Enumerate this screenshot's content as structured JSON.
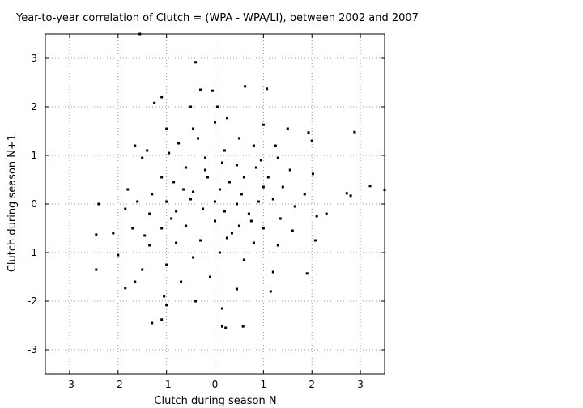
{
  "chart_data": {
    "type": "scatter",
    "title": "Year-to-year correlation of Clutch = (WPA - WPA/LI), between 2002 and 2007",
    "xlabel": "Clutch during season N",
    "ylabel": "Clutch during season N+1",
    "xlim": [
      -3.5,
      3.5
    ],
    "ylim": [
      -3.5,
      3.5
    ],
    "x_ticks": [
      -3,
      -2,
      -1,
      0,
      1,
      2,
      3
    ],
    "y_ticks": [
      -3,
      -2,
      -1,
      0,
      1,
      2,
      3
    ],
    "x_tick_labels": [
      "-3",
      "-2",
      "-1",
      "0",
      "1",
      "2",
      "3"
    ],
    "y_tick_labels": [
      "-3",
      "-2",
      "-1",
      "0",
      "1",
      "2",
      "3"
    ],
    "grid": true,
    "grid_style": "dotted",
    "marker": "small black square",
    "marker_color": "#000000",
    "series": [
      {
        "points": [
          [
            -1.55,
            3.5
          ],
          [
            -0.4,
            2.92
          ],
          [
            0.62,
            2.42
          ],
          [
            1.07,
            2.37
          ],
          [
            -0.3,
            2.35
          ],
          [
            -0.05,
            2.33
          ],
          [
            -1.1,
            2.2
          ],
          [
            -1.25,
            2.08
          ],
          [
            -0.5,
            2.0
          ],
          [
            0.05,
            2.0
          ],
          [
            -0.45,
            1.55
          ],
          [
            0.25,
            1.77
          ],
          [
            -1.0,
            1.55
          ],
          [
            1.0,
            1.63
          ],
          [
            1.5,
            1.55
          ],
          [
            2.88,
            1.48
          ],
          [
            1.93,
            1.47
          ],
          [
            0.0,
            1.68
          ],
          [
            -0.95,
            1.05
          ],
          [
            -1.4,
            1.1
          ],
          [
            -0.75,
            1.25
          ],
          [
            -0.35,
            1.35
          ],
          [
            0.5,
            1.35
          ],
          [
            0.8,
            1.2
          ],
          [
            1.25,
            1.2
          ],
          [
            -1.65,
            1.2
          ],
          [
            2.0,
            1.3
          ],
          [
            0.2,
            1.1
          ],
          [
            -0.2,
            0.95
          ],
          [
            0.45,
            0.8
          ],
          [
            1.3,
            0.95
          ],
          [
            -1.5,
            0.95
          ],
          [
            -0.6,
            0.75
          ],
          [
            0.85,
            0.75
          ],
          [
            1.55,
            0.7
          ],
          [
            2.02,
            0.62
          ],
          [
            -1.1,
            0.55
          ],
          [
            -0.15,
            0.55
          ],
          [
            0.6,
            0.55
          ],
          [
            1.1,
            0.55
          ],
          [
            -1.8,
            0.3
          ],
          [
            -0.85,
            0.45
          ],
          [
            0.3,
            0.45
          ],
          [
            1.0,
            0.35
          ],
          [
            1.4,
            0.35
          ],
          [
            3.2,
            0.37
          ],
          [
            3.5,
            0.29
          ],
          [
            2.72,
            0.22
          ],
          [
            2.8,
            0.17
          ],
          [
            1.85,
            0.2
          ],
          [
            -1.3,
            0.2
          ],
          [
            -0.45,
            0.25
          ],
          [
            0.1,
            0.3
          ],
          [
            0.55,
            0.2
          ],
          [
            1.2,
            0.1
          ],
          [
            -2.4,
            0.0
          ],
          [
            -1.6,
            0.05
          ],
          [
            -1.0,
            0.05
          ],
          [
            -0.5,
            0.1
          ],
          [
            0.0,
            0.05
          ],
          [
            0.45,
            0.0
          ],
          [
            0.9,
            0.05
          ],
          [
            1.65,
            -0.05
          ],
          [
            2.3,
            -0.2
          ],
          [
            2.1,
            -0.25
          ],
          [
            -1.85,
            -0.1
          ],
          [
            -1.35,
            -0.2
          ],
          [
            -0.8,
            -0.15
          ],
          [
            -0.25,
            -0.1
          ],
          [
            0.2,
            -0.15
          ],
          [
            0.7,
            -0.2
          ],
          [
            1.35,
            -0.3
          ],
          [
            -2.1,
            -0.6
          ],
          [
            -2.45,
            -0.63
          ],
          [
            -1.7,
            -0.5
          ],
          [
            -1.1,
            -0.5
          ],
          [
            -0.6,
            -0.45
          ],
          [
            0.0,
            -0.35
          ],
          [
            0.5,
            -0.45
          ],
          [
            1.0,
            -0.5
          ],
          [
            1.6,
            -0.55
          ],
          [
            2.07,
            -0.75
          ],
          [
            -1.35,
            -0.85
          ],
          [
            -0.8,
            -0.8
          ],
          [
            -0.3,
            -0.75
          ],
          [
            0.25,
            -0.7
          ],
          [
            0.8,
            -0.8
          ],
          [
            1.3,
            -0.85
          ],
          [
            -2.0,
            -1.05
          ],
          [
            -2.45,
            -1.35
          ],
          [
            -1.5,
            -1.35
          ],
          [
            -1.0,
            -1.25
          ],
          [
            -0.45,
            -1.1
          ],
          [
            0.1,
            -1.0
          ],
          [
            0.6,
            -1.15
          ],
          [
            1.2,
            -1.4
          ],
          [
            1.9,
            -1.43
          ],
          [
            -1.85,
            -1.73
          ],
          [
            -1.65,
            -1.6
          ],
          [
            -0.7,
            -1.6
          ],
          [
            -0.1,
            -1.5
          ],
          [
            0.45,
            -1.75
          ],
          [
            1.15,
            -1.8
          ],
          [
            -1.05,
            -1.9
          ],
          [
            -1.0,
            -2.08
          ],
          [
            -0.4,
            -2.0
          ],
          [
            0.15,
            -2.15
          ],
          [
            -1.1,
            -2.38
          ],
          [
            -1.3,
            -2.45
          ],
          [
            0.15,
            -2.52
          ],
          [
            0.22,
            -2.55
          ],
          [
            0.58,
            -2.52
          ],
          [
            -0.2,
            0.7
          ],
          [
            0.35,
            -0.6
          ],
          [
            -0.65,
            0.3
          ],
          [
            0.75,
            -0.35
          ],
          [
            -0.9,
            -0.3
          ],
          [
            0.15,
            0.85
          ],
          [
            0.95,
            0.9
          ],
          [
            -1.45,
            -0.65
          ]
        ]
      }
    ]
  }
}
